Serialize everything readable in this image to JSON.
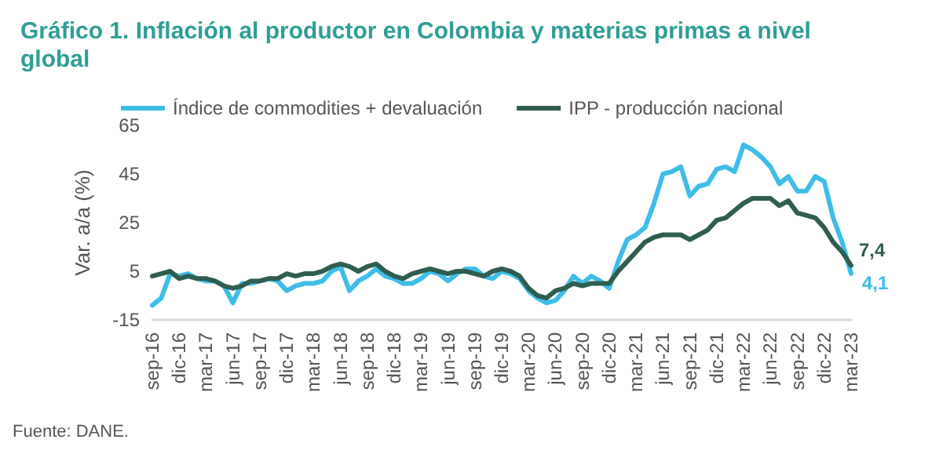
{
  "chart_data": {
    "type": "line",
    "title": "Gráfico 1. Inflación al productor en Colombia y materias primas a nivel global",
    "ylabel": "Var. a/a (%)",
    "annotations": [
      "Fuente: DANE."
    ],
    "categories": [
      "sep-16",
      null,
      null,
      "dic-16",
      null,
      null,
      "mar-17",
      null,
      null,
      "jun-17",
      null,
      null,
      "sep-17",
      null,
      null,
      "dic-17",
      null,
      null,
      "mar-18",
      null,
      null,
      "jun-18",
      null,
      null,
      "sep-18",
      null,
      null,
      "dic-18",
      null,
      null,
      "mar-19",
      null,
      null,
      "jun-19",
      null,
      null,
      "sep-19",
      null,
      null,
      "dic-19",
      null,
      null,
      "mar-20",
      null,
      null,
      "jun-20",
      null,
      null,
      "sep-20",
      null,
      null,
      "dic-20",
      null,
      null,
      "mar-21",
      null,
      null,
      "jun-21",
      null,
      null,
      "sep-21",
      null,
      null,
      "dic-21",
      null,
      null,
      "mar-22",
      null,
      null,
      "jun-22",
      null,
      null,
      "sep-22",
      null,
      null,
      "dic-22",
      null,
      null,
      "mar-23"
    ],
    "series": [
      {
        "name": "Índice de commodities + devaluación",
        "color": "#3dbde8",
        "values": [
          -9,
          -6,
          4,
          3,
          4,
          2,
          1,
          1,
          -1,
          -8,
          0,
          0,
          1,
          2,
          1,
          -3,
          -1,
          0,
          0,
          1,
          5,
          7,
          -3,
          1,
          3,
          6,
          3,
          2,
          0,
          0,
          2,
          5,
          4,
          1,
          4,
          6,
          6,
          3,
          2,
          5,
          4,
          2,
          -3,
          -6,
          -8,
          -7,
          -3,
          3,
          0,
          3,
          1,
          -2,
          9,
          18,
          20,
          23,
          33,
          45,
          46,
          48,
          36,
          40,
          41,
          47,
          48,
          46,
          57,
          55,
          52,
          48,
          41,
          44,
          38,
          38,
          44,
          42,
          27,
          17,
          4.1
        ],
        "value_labels": [
          null,
          null,
          null,
          null,
          null,
          null,
          null,
          null,
          null,
          null,
          null,
          null,
          null,
          null,
          null,
          null,
          null,
          null,
          null,
          null,
          null,
          null,
          null,
          null,
          null,
          null,
          null,
          null,
          null,
          null,
          null,
          null,
          null,
          null,
          null,
          null,
          null,
          null,
          null,
          null,
          null,
          null,
          null,
          null,
          null,
          null,
          null,
          null,
          null,
          null,
          null,
          null,
          null,
          null,
          null,
          null,
          null,
          null,
          null,
          null,
          null,
          null,
          null,
          null,
          null,
          null,
          null,
          null,
          null,
          null,
          null,
          null,
          null,
          null,
          null,
          null,
          null,
          null,
          "4,1"
        ]
      },
      {
        "name": "IPP - producción nacional",
        "color": "#2f5d50",
        "values": [
          3,
          4,
          5,
          2,
          3,
          2,
          2,
          1,
          -1,
          -2,
          -1,
          1,
          1,
          2,
          2,
          4,
          3,
          4,
          4,
          5,
          7,
          8,
          7,
          5,
          7,
          8,
          5,
          3,
          2,
          4,
          5,
          6,
          5,
          4,
          5,
          5,
          4,
          3,
          5,
          6,
          5,
          3,
          -2,
          -5,
          -6,
          -3,
          -2,
          0,
          -1,
          0,
          0,
          0,
          5,
          9,
          13,
          17,
          19,
          20,
          20,
          20,
          18,
          20,
          22,
          26,
          27,
          30,
          33,
          35,
          35,
          35,
          32,
          34,
          29,
          28,
          27,
          23,
          17,
          13,
          7.4
        ],
        "value_labels": [
          null,
          null,
          null,
          null,
          null,
          null,
          null,
          null,
          null,
          null,
          null,
          null,
          null,
          null,
          null,
          null,
          null,
          null,
          null,
          null,
          null,
          null,
          null,
          null,
          null,
          null,
          null,
          null,
          null,
          null,
          null,
          null,
          null,
          null,
          null,
          null,
          null,
          null,
          null,
          null,
          null,
          null,
          null,
          null,
          null,
          null,
          null,
          null,
          null,
          null,
          null,
          null,
          null,
          null,
          null,
          null,
          null,
          null,
          null,
          null,
          null,
          null,
          null,
          null,
          null,
          null,
          null,
          null,
          null,
          null,
          null,
          null,
          null,
          null,
          null,
          null,
          null,
          null,
          "7,4"
        ]
      }
    ],
    "ylim": [
      -15,
      65
    ],
    "yticks": [
      -15,
      5,
      25,
      45,
      65
    ],
    "grid": false,
    "legend": "top",
    "marker": "none",
    "line_style": "solid"
  }
}
